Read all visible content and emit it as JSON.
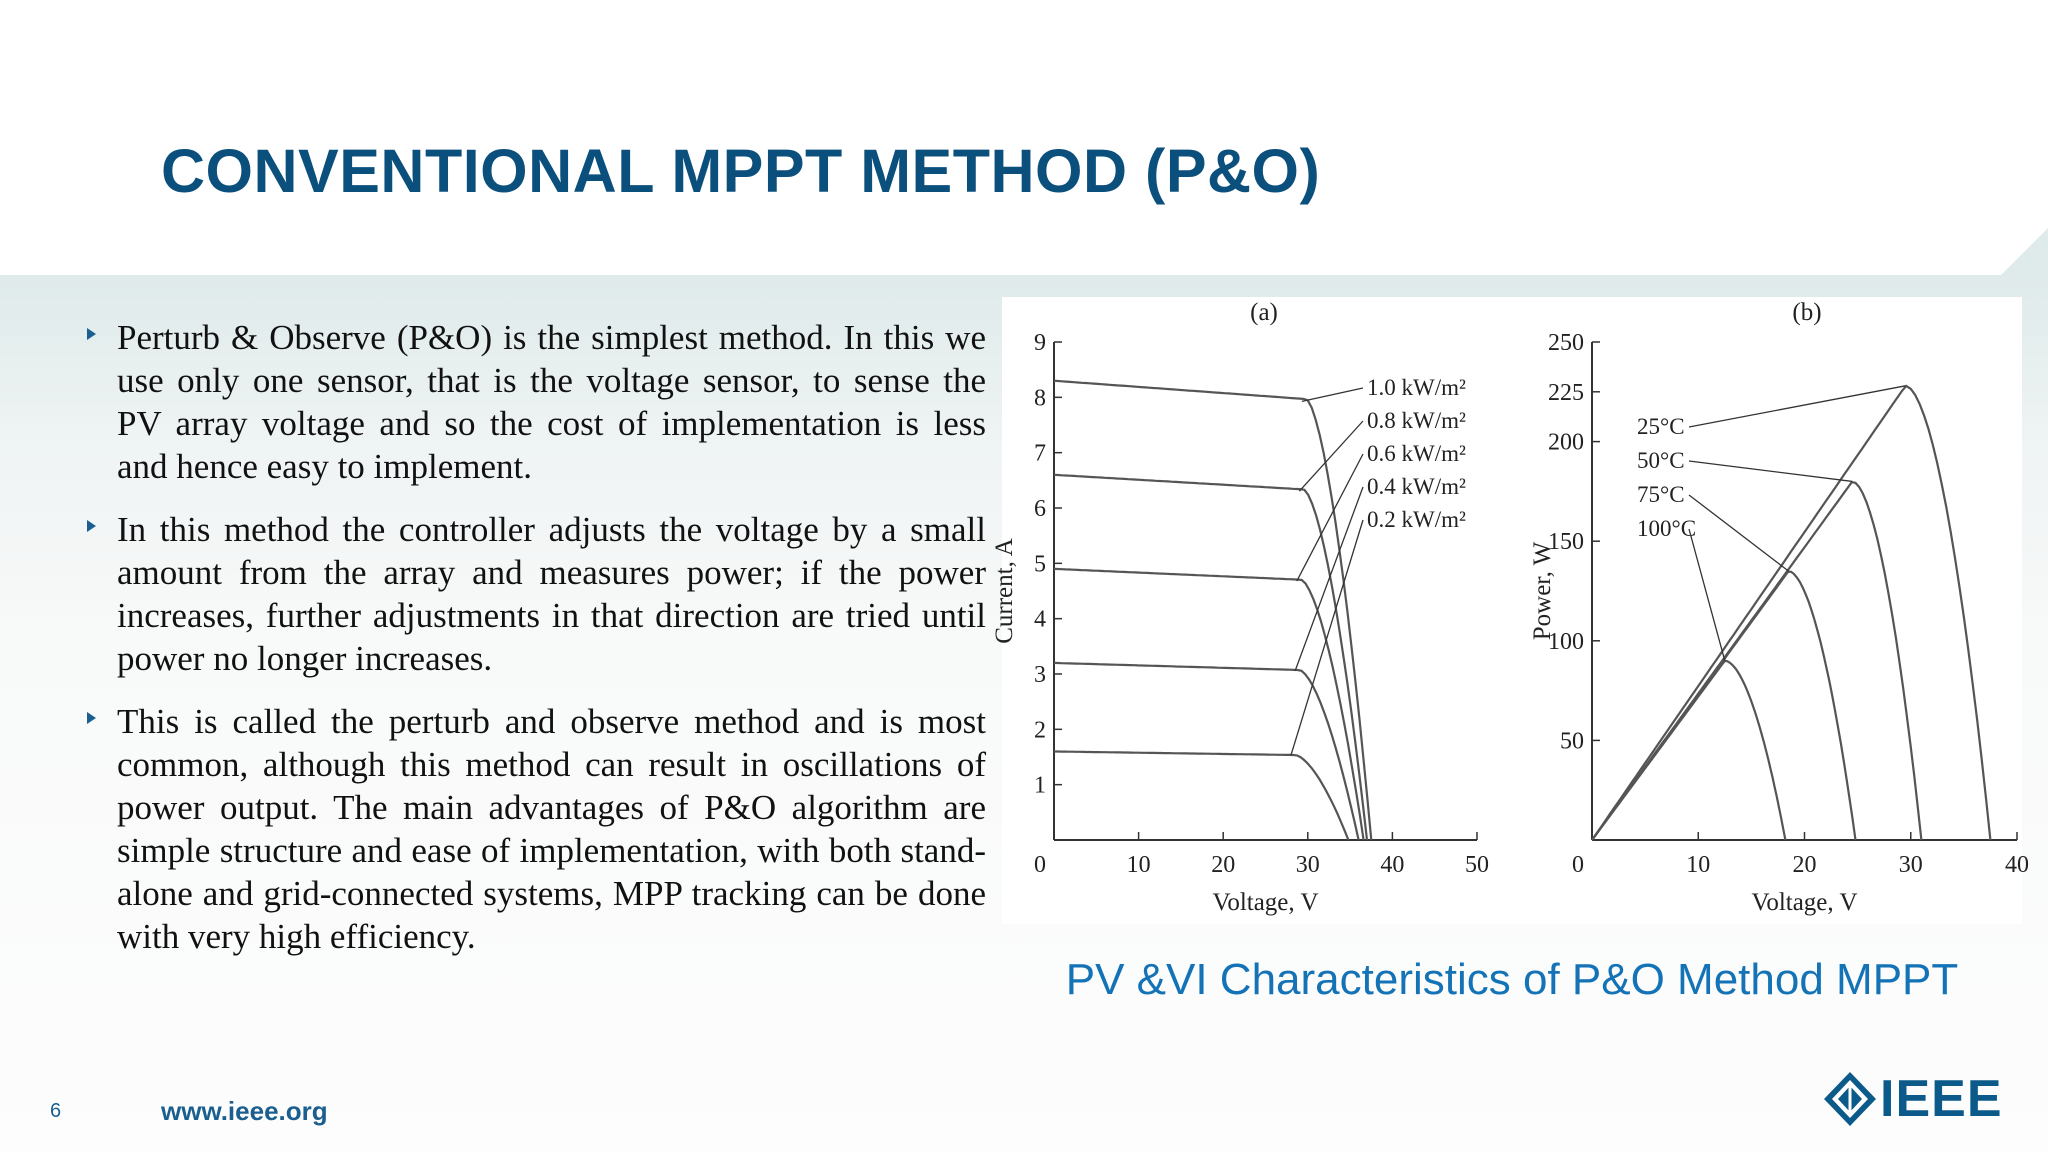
{
  "slide": {
    "title": "CONVENTIONAL MPPT METHOD (P&O)",
    "bullets": [
      "Perturb & Observe (P&O) is the simplest method. In this we use only one sensor, that is the voltage sensor, to sense the PV array voltage and so the cost of implementation is less and hence easy to implement.",
      "In this method the controller adjusts the voltage by a small amount from the array and measures power; if the power increases, further adjustments in that direction are tried until power no longer increases.",
      "This is called the perturb and observe method and is most common, although this method can result in oscillations of power output. The main advantages of P&O algorithm are simple structure and ease of implementation, with both stand-alone and grid-connected systems, MPP tracking can be done with very high efficiency."
    ],
    "caption": "PV &VI Characteristics of P&O Method MPPT",
    "page_number": "6",
    "url": "www.ieee.org",
    "logo_text": "IEEE"
  },
  "colors": {
    "title": "#0b4f7d",
    "caption": "#1473b6",
    "accent": "#1a5f8f",
    "curve": "#555555"
  },
  "chart_data": [
    {
      "type": "line",
      "panel_label": "(a)",
      "xlabel": "Voltage, V",
      "ylabel": "Current, A",
      "xlim": [
        0,
        50
      ],
      "ylim": [
        0,
        9
      ],
      "xticks": [
        0,
        10,
        20,
        30,
        40,
        50
      ],
      "yticks": [
        1,
        2,
        3,
        4,
        5,
        6,
        7,
        8,
        9
      ],
      "grid": false,
      "series": [
        {
          "name": "1.0 kW/m²",
          "isc": 8.3,
          "voc": 37.5,
          "knee": 29.8
        },
        {
          "name": "0.8 kW/m²",
          "isc": 6.6,
          "voc": 37.0,
          "knee": 29.5
        },
        {
          "name": "0.6 kW/m²",
          "isc": 4.9,
          "voc": 36.6,
          "knee": 29.2
        },
        {
          "name": "0.4 kW/m²",
          "isc": 3.2,
          "voc": 36.0,
          "knee": 29.0
        },
        {
          "name": "0.2 kW/m²",
          "isc": 1.6,
          "voc": 34.8,
          "knee": 28.5
        }
      ]
    },
    {
      "type": "line",
      "panel_label": "(b)",
      "xlabel": "Voltage, V",
      "ylabel": "Power, W",
      "xlim": [
        0,
        40
      ],
      "ylim": [
        0,
        250
      ],
      "xticks": [
        0,
        10,
        20,
        30,
        40
      ],
      "yticks": [
        50,
        100,
        150,
        200,
        225,
        250
      ],
      "grid": false,
      "series": [
        {
          "name": "25°C",
          "vmp": 29.5,
          "pmax": 228,
          "voc": 37.5
        },
        {
          "name": "50°C",
          "vmp": 24.5,
          "pmax": 180,
          "voc": 31.0
        },
        {
          "name": "75°C",
          "vmp": 18.5,
          "pmax": 135,
          "voc": 24.8
        },
        {
          "name": "100°C",
          "vmp": 12.5,
          "pmax": 90,
          "voc": 18.2
        }
      ]
    }
  ]
}
